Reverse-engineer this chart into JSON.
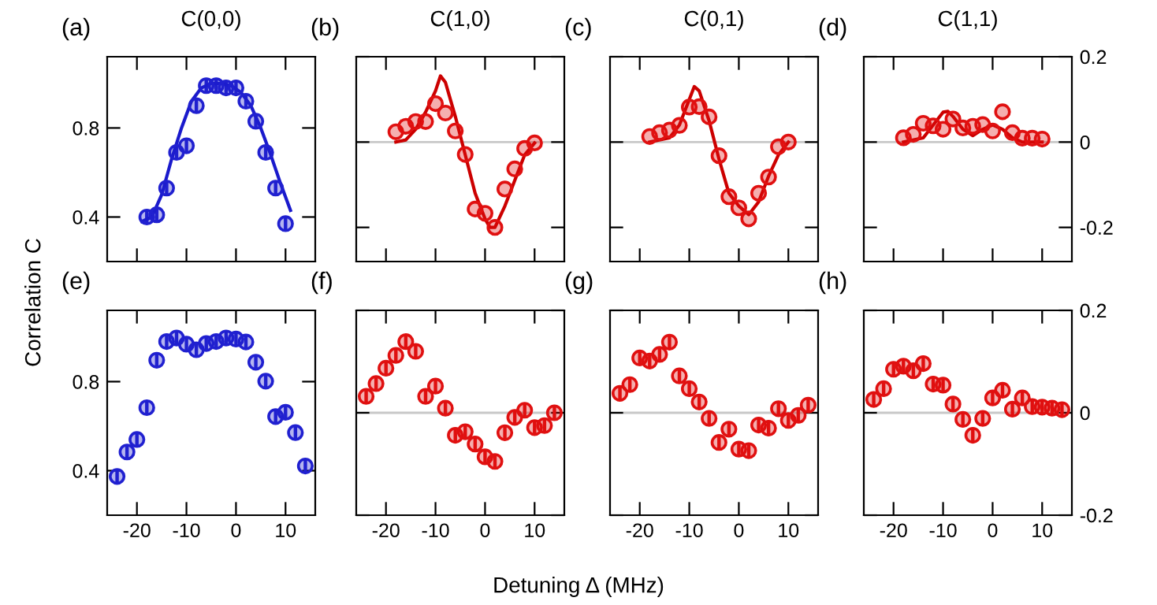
{
  "chart_data": [
    {
      "type": "scatter",
      "title": "C(0,0)",
      "ylabel": "Correlation C",
      "annotations": [
        "(a)"
      ],
      "xlim": [
        -26,
        16
      ],
      "xticks": [
        -20,
        -10,
        0,
        10
      ],
      "ylim": [
        0.2,
        1.12
      ],
      "yticks": [
        0.4,
        0.8
      ],
      "tick_labels": "y",
      "series": [
        {
          "type": "scatter",
          "color": "#2020d0",
          "marker": "circle",
          "x": [
            -18,
            -16,
            -14,
            -12,
            -10,
            -8,
            -6,
            -4,
            -2,
            0,
            2,
            4,
            6,
            8,
            10
          ],
          "values": [
            0.4,
            0.41,
            0.53,
            0.69,
            0.72,
            0.9,
            0.99,
            0.99,
            0.98,
            0.98,
            0.92,
            0.83,
            0.69,
            0.53,
            0.37
          ],
          "errors": [
            0.03,
            0.03,
            0.03,
            0.03,
            0.03,
            0.03,
            0.03,
            0.03,
            0.03,
            0.03,
            0.03,
            0.03,
            0.03,
            0.03,
            0.03
          ]
        },
        {
          "type": "line",
          "color": "#1a1acc",
          "marker": "none",
          "line_style": "solid",
          "x": [
            -19,
            -17,
            -15,
            -13,
            -11,
            -9,
            -7,
            -5,
            -3,
            -1,
            1,
            3,
            5,
            7,
            9,
            11
          ],
          "values": [
            0.38,
            0.4,
            0.5,
            0.66,
            0.8,
            0.92,
            0.98,
            1.0,
            1.0,
            0.99,
            0.96,
            0.9,
            0.8,
            0.68,
            0.55,
            0.43
          ]
        }
      ]
    },
    {
      "type": "scatter",
      "title": "C(1,0)",
      "annotations": [
        "(b)"
      ],
      "xlim": [
        -26,
        16
      ],
      "xticks": [
        -20,
        -10,
        0,
        10
      ],
      "ylim": [
        -0.28,
        0.2
      ],
      "yticks": [
        -0.2,
        0,
        0.2
      ],
      "tick_labels": false,
      "ref_lines": [
        {
          "axis": "y",
          "value": 0,
          "color": "#c8c8c8"
        }
      ],
      "series": [
        {
          "type": "scatter",
          "color": "#e01010",
          "marker": "circle",
          "x": [
            -18,
            -16,
            -14,
            -12,
            -10,
            -8,
            -6,
            -4,
            -2,
            0,
            2,
            4,
            6,
            8,
            10
          ],
          "values": [
            0.024,
            0.037,
            0.048,
            0.048,
            0.09,
            0.068,
            0.026,
            -0.029,
            -0.157,
            -0.167,
            -0.2,
            -0.11,
            -0.063,
            -0.015,
            -0.002
          ]
        },
        {
          "type": "line",
          "color": "#cc0000",
          "marker": "none",
          "line_style": "solid",
          "x": [
            -18,
            -16,
            -14,
            -12,
            -10,
            -9,
            -8,
            -6,
            -4,
            -2,
            0,
            1,
            2,
            4,
            6,
            8,
            10
          ],
          "values": [
            0,
            0.005,
            0.03,
            0.07,
            0.12,
            0.155,
            0.14,
            0.06,
            -0.03,
            -0.12,
            -0.18,
            -0.2,
            -0.2,
            -0.15,
            -0.09,
            -0.03,
            -0.002
          ]
        }
      ]
    },
    {
      "type": "scatter",
      "title": "C(0,1)",
      "annotations": [
        "(c)"
      ],
      "xlim": [
        -26,
        16
      ],
      "xticks": [
        -20,
        -10,
        0,
        10
      ],
      "ylim": [
        -0.28,
        0.2
      ],
      "yticks": [
        -0.2,
        0,
        0.2
      ],
      "tick_labels": false,
      "ref_lines": [
        {
          "axis": "y",
          "value": 0,
          "color": "#c8c8c8"
        }
      ],
      "series": [
        {
          "type": "scatter",
          "color": "#e01010",
          "marker": "circle",
          "x": [
            -18,
            -16,
            -14,
            -12,
            -10,
            -8,
            -6,
            -4,
            -2,
            0,
            2,
            4,
            6,
            8,
            10
          ],
          "values": [
            0.013,
            0.022,
            0.028,
            0.039,
            0.082,
            0.083,
            0.059,
            -0.032,
            -0.128,
            -0.154,
            -0.18,
            -0.12,
            -0.082,
            -0.011,
            0
          ]
        },
        {
          "type": "line",
          "color": "#cc0000",
          "marker": "none",
          "line_style": "solid",
          "x": [
            -18,
            -14,
            -12,
            -10,
            -9,
            -8,
            -6,
            -4,
            -2,
            0,
            2,
            4,
            6,
            8,
            10
          ],
          "values": [
            0,
            0.01,
            0.04,
            0.1,
            0.13,
            0.12,
            0.05,
            -0.04,
            -0.12,
            -0.15,
            -0.17,
            -0.14,
            -0.08,
            -0.03,
            0
          ]
        }
      ]
    },
    {
      "type": "scatter",
      "title": "C(1,1)",
      "annotations": [
        "(d)"
      ],
      "xlim": [
        -26,
        16
      ],
      "xticks": [
        -20,
        -10,
        0,
        10
      ],
      "ylim": [
        -0.28,
        0.2
      ],
      "yticks": [
        -0.2,
        0,
        0.2
      ],
      "tick_labels": "y",
      "ref_lines": [
        {
          "axis": "y",
          "value": 0,
          "color": "#c8c8c8"
        }
      ],
      "series": [
        {
          "type": "scatter",
          "color": "#e01010",
          "marker": "circle",
          "x": [
            -18,
            -16,
            -14,
            -12,
            -10,
            -8,
            -6,
            -4,
            -2,
            0,
            2,
            4,
            6,
            8,
            10
          ],
          "values": [
            0.01,
            0.018,
            0.044,
            0.038,
            0.03,
            0.054,
            0.033,
            0.037,
            0.041,
            0.026,
            0.071,
            0.022,
            0.009,
            0.009,
            0.007
          ]
        },
        {
          "type": "line",
          "color": "#cc0000",
          "marker": "none",
          "line_style": "solid",
          "x": [
            -18,
            -14,
            -12,
            -10,
            -9,
            -8,
            -6,
            -4,
            -2,
            0,
            2,
            4,
            6,
            10
          ],
          "values": [
            0,
            0.01,
            0.04,
            0.07,
            0.072,
            0.06,
            0.03,
            0.015,
            0.03,
            0.04,
            0.03,
            0.01,
            0,
            0
          ]
        }
      ]
    },
    {
      "type": "scatter",
      "annotations": [
        "(e)"
      ],
      "xlim": [
        -26,
        16
      ],
      "xticks": [
        -20,
        -10,
        0,
        10
      ],
      "ylim": [
        0.2,
        1.12
      ],
      "yticks": [
        0.4,
        0.8
      ],
      "series": [
        {
          "type": "scatter",
          "color": "#2020d0",
          "marker": "circle",
          "x": [
            -24,
            -22,
            -20,
            -18,
            -16,
            -14,
            -12,
            -10,
            -8,
            -6,
            -4,
            -2,
            0,
            2,
            4,
            6,
            8,
            10,
            12,
            14
          ],
          "values": [
            0.374,
            0.484,
            0.54,
            0.683,
            0.896,
            0.98,
            0.996,
            0.968,
            0.943,
            0.971,
            0.98,
            0.996,
            0.991,
            0.978,
            0.887,
            0.802,
            0.643,
            0.662,
            0.571,
            0.421
          ],
          "errors": [
            0.03,
            0.03,
            0.03,
            0.03,
            0.03,
            0.03,
            0.03,
            0.03,
            0.03,
            0.03,
            0.03,
            0.03,
            0.03,
            0.03,
            0.03,
            0.03,
            0.03,
            0.03,
            0.03,
            0.03
          ]
        }
      ]
    },
    {
      "type": "scatter",
      "xlabel": "Detuning Δ (MHz)",
      "annotations": [
        "(f)"
      ],
      "xlim": [
        -26,
        16
      ],
      "xticks": [
        -20,
        -10,
        0,
        10
      ],
      "ylim": [
        -0.2,
        0.2
      ],
      "yticks": [
        -0.2,
        0,
        0.2
      ],
      "tick_labels": "x",
      "ref_lines": [
        {
          "axis": "y",
          "value": 0,
          "color": "#c8c8c8"
        }
      ],
      "series": [
        {
          "type": "scatter",
          "color": "#e01010",
          "marker": "circle",
          "x": [
            -24,
            -22,
            -20,
            -18,
            -16,
            -14,
            -12,
            -10,
            -8,
            -6,
            -4,
            -2,
            0,
            2,
            4,
            6,
            8,
            10,
            12,
            14
          ],
          "values": [
            0.032,
            0.057,
            0.087,
            0.112,
            0.139,
            0.12,
            0.032,
            0.052,
            0.009,
            -0.044,
            -0.037,
            -0.061,
            -0.086,
            -0.095,
            -0.039,
            -0.009,
            0.005,
            -0.029,
            -0.025,
            0
          ],
          "errors": [
            0.015,
            0.015,
            0.015,
            0.015,
            0.015,
            0.015,
            0.015,
            0.015,
            0.015,
            0.015,
            0.015,
            0.015,
            0.015,
            0.015,
            0.015,
            0.015,
            0.015,
            0.015,
            0.015,
            0.015
          ]
        }
      ]
    },
    {
      "type": "scatter",
      "annotations": [
        "(g)"
      ],
      "xlim": [
        -26,
        16
      ],
      "xticks": [
        -20,
        -10,
        0,
        10
      ],
      "ylim": [
        -0.2,
        0.2
      ],
      "yticks": [
        -0.2,
        0,
        0.2
      ],
      "tick_labels": "x",
      "ref_lines": [
        {
          "axis": "y",
          "value": 0,
          "color": "#c8c8c8"
        }
      ],
      "series": [
        {
          "type": "scatter",
          "color": "#e01010",
          "marker": "circle",
          "x": [
            -24,
            -22,
            -20,
            -18,
            -16,
            -14,
            -12,
            -10,
            -8,
            -6,
            -4,
            -2,
            0,
            2,
            4,
            6,
            8,
            10,
            12,
            14
          ],
          "values": [
            0.038,
            0.055,
            0.107,
            0.101,
            0.114,
            0.138,
            0.072,
            0.047,
            0.021,
            -0.011,
            -0.058,
            -0.032,
            -0.071,
            -0.074,
            -0.024,
            -0.03,
            0.008,
            -0.015,
            -0.005,
            0.015
          ],
          "errors": [
            0.015,
            0.015,
            0.015,
            0.015,
            0.015,
            0.015,
            0.015,
            0.015,
            0.015,
            0.015,
            0.015,
            0.015,
            0.015,
            0.015,
            0.015,
            0.015,
            0.015,
            0.015,
            0.015,
            0.015
          ]
        }
      ]
    },
    {
      "type": "scatter",
      "annotations": [
        "(h)"
      ],
      "xlim": [
        -26,
        16
      ],
      "xticks": [
        -20,
        -10,
        0,
        10
      ],
      "ylim": [
        -0.2,
        0.2
      ],
      "yticks": [
        -0.2,
        0,
        0.2
      ],
      "ref_lines": [
        {
          "axis": "y",
          "value": 0,
          "color": "#c8c8c8"
        }
      ],
      "series": [
        {
          "type": "scatter",
          "color": "#e01010",
          "marker": "circle",
          "x": [
            -24,
            -22,
            -20,
            -18,
            -16,
            -14,
            -12,
            -10,
            -8,
            -6,
            -4,
            -2,
            0,
            2,
            4,
            6,
            8,
            10,
            12,
            14
          ],
          "values": [
            0.026,
            0.047,
            0.085,
            0.091,
            0.082,
            0.096,
            0.056,
            0.054,
            0.017,
            -0.013,
            -0.044,
            -0.011,
            0.029,
            0.044,
            0.007,
            0.029,
            0.012,
            0.011,
            0.009,
            0.006
          ],
          "errors": [
            0.015,
            0.015,
            0.015,
            0.015,
            0.015,
            0.015,
            0.015,
            0.015,
            0.015,
            0.015,
            0.015,
            0.015,
            0.015,
            0.015,
            0.015,
            0.015,
            0.015,
            0.015,
            0.015,
            0.015
          ]
        }
      ]
    }
  ]
}
